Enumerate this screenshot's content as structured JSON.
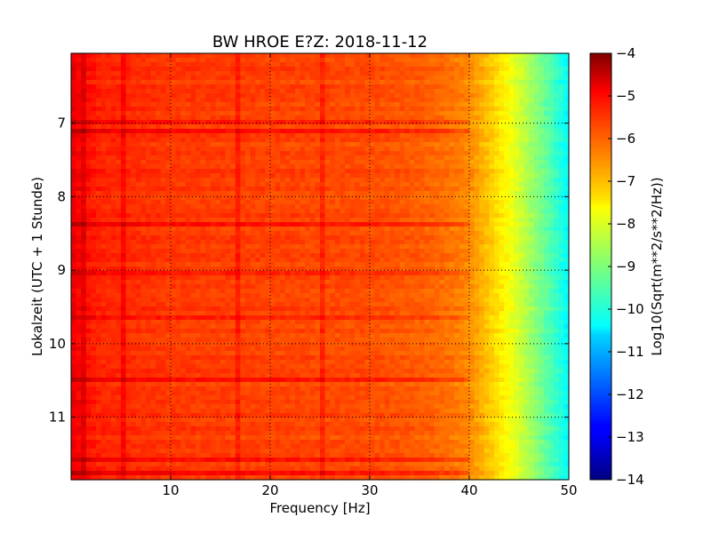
{
  "chart_data": {
    "type": "heatmap",
    "title": "BW HROE E?Z: 2018-11-12",
    "xlabel": "Frequency [Hz]",
    "ylabel": "Lokalzeit (UTC + 1 Stunde)",
    "xlim": [
      0,
      50
    ],
    "ylim": [
      11.85,
      6.05
    ],
    "x_ticks": [
      10,
      20,
      30,
      40,
      50
    ],
    "x_tick_labels": [
      "10",
      "20",
      "30",
      "40",
      "50"
    ],
    "y_ticks": [
      7,
      8,
      9,
      10,
      11
    ],
    "y_tick_labels": [
      "7",
      "8",
      "9",
      "10",
      "11"
    ],
    "grid": true,
    "colorbar": {
      "label": "Log10(Sqrt(m**2/s**2/Hz))",
      "range": [
        -14,
        -4
      ],
      "ticks": [
        -4,
        -5,
        -6,
        -7,
        -8,
        -9,
        -10,
        -11,
        -12,
        -13,
        -14
      ],
      "tick_labels": [
        "−4",
        "−5",
        "−6",
        "−7",
        "−8",
        "−9",
        "−10",
        "−11",
        "−12",
        "−13",
        "−14"
      ],
      "colormap": "jet"
    },
    "frequency_profile": {
      "frequency_hz": [
        0,
        1,
        3,
        10,
        20,
        30,
        35,
        38,
        40,
        42,
        44,
        46,
        48,
        50
      ],
      "log10_amplitude": [
        -5.0,
        -5.3,
        -5.6,
        -5.8,
        -5.9,
        -6.0,
        -6.15,
        -6.35,
        -6.6,
        -7.2,
        -7.8,
        -8.6,
        -9.4,
        -10.3
      ]
    },
    "spectral_lines_hz": [
      1.0,
      5.0,
      16.7,
      25.0
    ],
    "time_bands_h": [
      6.95,
      7.1,
      8.35,
      9.0,
      9.6,
      10.45,
      11.55,
      11.7
    ]
  }
}
